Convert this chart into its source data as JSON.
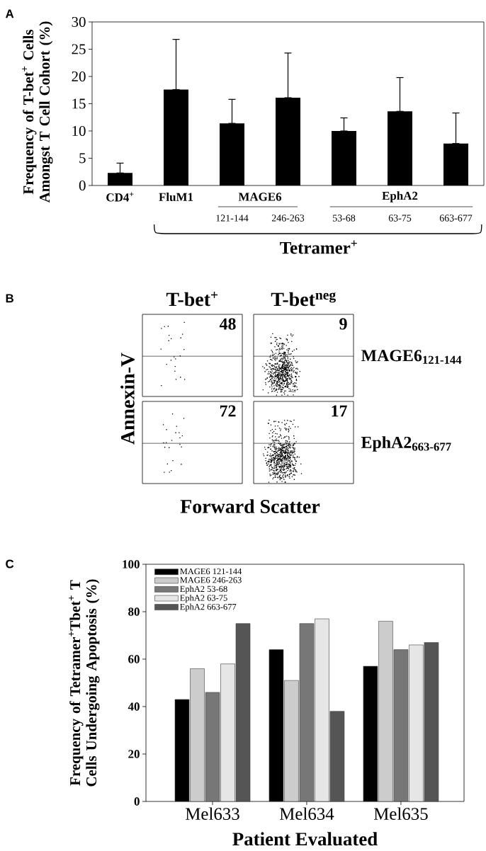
{
  "chart_data": [
    {
      "type": "bar",
      "ylabel": "Frequency of T-bet$^{+}$ Cells Amongst T Cell Cohort (%)",
      "categories": [
        "CD4$^{+}$",
        "FluM1",
        "121-144",
        "246-263",
        "53-68",
        "63-75",
        "663-677"
      ],
      "values": [
        2.3,
        17.6,
        11.4,
        16.1,
        10.0,
        13.6,
        7.7
      ],
      "errors": [
        [
          2.3,
          4.1
        ],
        [
          17.6,
          26.8
        ],
        [
          11.4,
          15.8
        ],
        [
          16.1,
          24.3
        ],
        [
          10.0,
          12.4
        ],
        [
          13.6,
          19.8
        ],
        [
          7.7,
          13.3
        ]
      ],
      "color": "#000000",
      "ylim": [
        0,
        30
      ],
      "yticks": [
        0,
        5,
        10,
        15,
        20,
        25,
        30
      ],
      "annotations": [
        "A",
        "MAGE6",
        "EphA2",
        "Tetramer$^{+}$"
      ]
    },
    {
      "type": "other",
      "xlabel": "Forward Scatter",
      "ylabel": "Annexin-V",
      "categories": [
        "T-bet$^{+}$",
        "T-bet$^{neg}$"
      ],
      "annotations": [
        "B",
        "MAGE6$_{121-144}$",
        "EphA2$_{663-677}$",
        "48",
        "9",
        "72",
        "17"
      ]
    },
    {
      "type": "bar",
      "xlabel": "Patient Evaluated",
      "ylabel": "Frequency of Tetramer$^{+}$Tbet$^{+}$ T Cells Undergoing Apoptosis (%)",
      "categories": [
        "Mel633",
        "Mel634",
        "Mel635"
      ],
      "series": [
        {
          "name": "MAGE6 121-144",
          "color": "#000000",
          "values": [
            43,
            64,
            57
          ]
        },
        {
          "name": "MAGE6 246-263",
          "color": "#cccccc",
          "values": [
            56,
            51,
            76
          ]
        },
        {
          "name": "EphA2 53-68",
          "color": "#777777",
          "values": [
            46,
            75,
            64
          ]
        },
        {
          "name": "EphA2 63-75",
          "color": "#e6e6e6",
          "values": [
            58,
            77,
            66
          ]
        },
        {
          "name": "EphA2 663-677",
          "color": "#555555",
          "values": [
            75,
            38,
            67
          ]
        }
      ],
      "ylim": [
        0,
        100
      ],
      "yticks": [
        0,
        20,
        40,
        60,
        80,
        100
      ],
      "legend": "top left",
      "annotations": [
        "C"
      ]
    }
  ]
}
